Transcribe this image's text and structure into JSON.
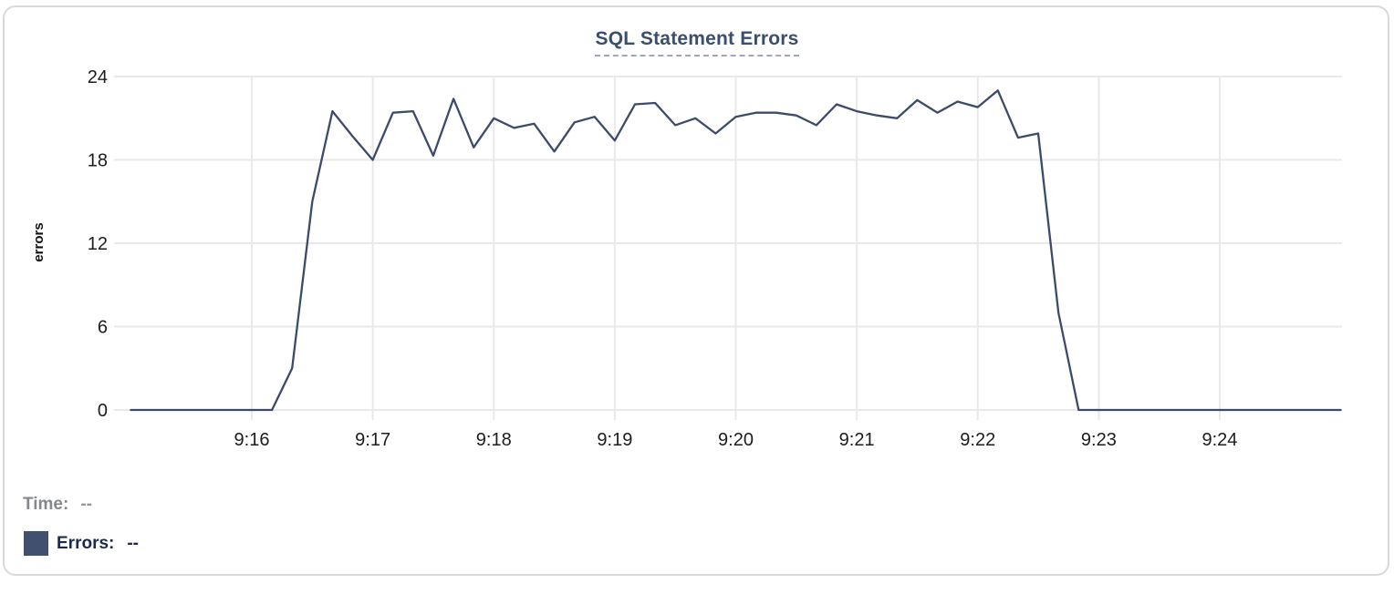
{
  "chart_data": {
    "type": "line",
    "title": "SQL Statement Errors",
    "xlabel": "",
    "ylabel": "errors",
    "ylim": [
      0,
      24
    ],
    "yticks": [
      0,
      6,
      12,
      18,
      24
    ],
    "xtick_labels": [
      "9:16",
      "9:17",
      "9:18",
      "9:19",
      "9:20",
      "9:21",
      "9:22",
      "9:23",
      "9:24"
    ],
    "x_range": [
      "9:15:00",
      "9:25:00"
    ],
    "grid": true,
    "legend_position": "bottom-left",
    "series": [
      {
        "name": "Errors",
        "color": "#3c4b6a",
        "x": [
          "9:15:00",
          "9:15:10",
          "9:15:20",
          "9:15:30",
          "9:15:40",
          "9:15:50",
          "9:16:00",
          "9:16:10",
          "9:16:20",
          "9:16:30",
          "9:16:40",
          "9:16:50",
          "9:17:00",
          "9:17:10",
          "9:17:20",
          "9:17:30",
          "9:17:40",
          "9:17:50",
          "9:18:00",
          "9:18:10",
          "9:18:20",
          "9:18:30",
          "9:18:40",
          "9:18:50",
          "9:19:00",
          "9:19:10",
          "9:19:20",
          "9:19:30",
          "9:19:40",
          "9:19:50",
          "9:20:00",
          "9:20:10",
          "9:20:20",
          "9:20:30",
          "9:20:40",
          "9:20:50",
          "9:21:00",
          "9:21:10",
          "9:21:20",
          "9:21:30",
          "9:21:40",
          "9:21:50",
          "9:22:00",
          "9:22:10",
          "9:22:20",
          "9:22:30",
          "9:22:40",
          "9:22:50",
          "9:23:00",
          "9:23:10",
          "9:23:20",
          "9:23:30",
          "9:23:40",
          "9:23:50",
          "9:24:00",
          "9:24:10",
          "9:24:20",
          "9:24:30",
          "9:24:40",
          "9:24:50",
          "9:25:00"
        ],
        "values": [
          0,
          0,
          0,
          0,
          0,
          0,
          0,
          0,
          3,
          15,
          21.5,
          19.7,
          18,
          21.4,
          21.5,
          18.3,
          22.4,
          18.9,
          21,
          20.3,
          20.6,
          18.6,
          20.7,
          21.1,
          19.4,
          22,
          22.1,
          20.5,
          21,
          19.9,
          21.1,
          21.4,
          21.4,
          21.2,
          20.5,
          22,
          21.5,
          21.2,
          21,
          22.3,
          21.4,
          22.2,
          21.8,
          23,
          19.6,
          19.9,
          7,
          0,
          0,
          0,
          0,
          0,
          0,
          0,
          0,
          0,
          0,
          0,
          0,
          0,
          0
        ]
      }
    ]
  },
  "legend": {
    "time_label": "Time:",
    "time_value": "--",
    "errors_label": "Errors:",
    "errors_value": "--",
    "swatch_color": "#41506f"
  },
  "colors": {
    "title": "#3a4e6e",
    "title_underline": "#9aa6c6",
    "grid": "#e9e9e9",
    "axis_text": "#1c1c1e",
    "ylabel_text": "#111111",
    "line": "#3c4b6a",
    "time_text": "#85878c",
    "errors_text": "#1c2a4e",
    "card_border": "#d9d9d9",
    "background": "#ffffff"
  }
}
